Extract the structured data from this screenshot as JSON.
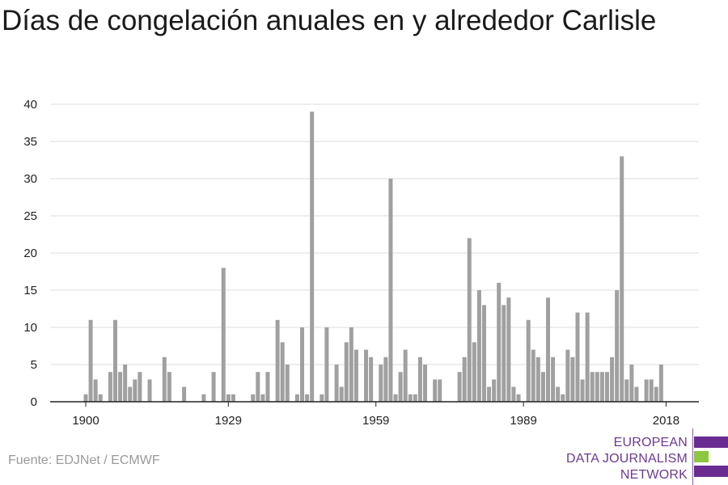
{
  "title": "Días de congelación anuales en y alrededor Carlisle",
  "source": "Fuente: EDJNet / ECMWF",
  "logo": {
    "lines": [
      "EUROPEAN",
      "DATA JOURNALISM",
      "NETWORK"
    ],
    "colors": {
      "text": "#6b3a8f",
      "purple": "#6b2c91",
      "green": "#8dc63f"
    }
  },
  "colors": {
    "bar": "#a0a0a0",
    "grid": "#dddddd",
    "axis": "#222222"
  },
  "chart_data": {
    "type": "bar",
    "title": "",
    "xlabel": "",
    "ylabel": "",
    "ylim": [
      0,
      40
    ],
    "yticks": [
      0,
      5,
      10,
      15,
      20,
      25,
      30,
      35,
      40
    ],
    "xticks": [
      1900,
      1929,
      1959,
      1989,
      2018
    ],
    "grid": true,
    "x": [
      1900,
      1901,
      1902,
      1903,
      1904,
      1905,
      1906,
      1907,
      1908,
      1909,
      1910,
      1911,
      1912,
      1913,
      1914,
      1915,
      1916,
      1917,
      1918,
      1919,
      1920,
      1921,
      1922,
      1923,
      1924,
      1925,
      1926,
      1927,
      1928,
      1929,
      1930,
      1931,
      1932,
      1933,
      1934,
      1935,
      1936,
      1937,
      1938,
      1939,
      1940,
      1941,
      1942,
      1943,
      1944,
      1945,
      1946,
      1947,
      1948,
      1949,
      1950,
      1951,
      1952,
      1953,
      1954,
      1955,
      1956,
      1957,
      1958,
      1959,
      1960,
      1961,
      1962,
      1963,
      1964,
      1965,
      1966,
      1967,
      1968,
      1969,
      1970,
      1971,
      1972,
      1973,
      1974,
      1975,
      1976,
      1977,
      1978,
      1979,
      1980,
      1981,
      1982,
      1983,
      1984,
      1985,
      1986,
      1987,
      1988,
      1989,
      1990,
      1991,
      1992,
      1993,
      1994,
      1995,
      1996,
      1997,
      1998,
      1999,
      2000,
      2001,
      2002,
      2003,
      2004,
      2005,
      2006,
      2007,
      2008,
      2009,
      2010,
      2011,
      2012,
      2013,
      2014,
      2015,
      2016,
      2017,
      2018
    ],
    "values": [
      1,
      11,
      3,
      1,
      0,
      4,
      11,
      4,
      5,
      2,
      3,
      4,
      0,
      3,
      0,
      0,
      6,
      4,
      0,
      0,
      2,
      0,
      0,
      0,
      1,
      0,
      4,
      0,
      18,
      1,
      1,
      0,
      0,
      0,
      1,
      4,
      1,
      4,
      0,
      11,
      8,
      5,
      0,
      1,
      10,
      1,
      39,
      0,
      1,
      10,
      0,
      5,
      2,
      8,
      10,
      7,
      0,
      7,
      6,
      0,
      5,
      6,
      30,
      1,
      4,
      7,
      1,
      1,
      6,
      5,
      0,
      3,
      3,
      0,
      0,
      0,
      4,
      6,
      22,
      8,
      15,
      13,
      2,
      3,
      16,
      13,
      14,
      2,
      1,
      0,
      11,
      7,
      6,
      4,
      14,
      6,
      2,
      1,
      7,
      6,
      12,
      3,
      12,
      4,
      4,
      4,
      4,
      6,
      15,
      33,
      3,
      5,
      2,
      0,
      3,
      3,
      2,
      5,
      0
    ]
  }
}
